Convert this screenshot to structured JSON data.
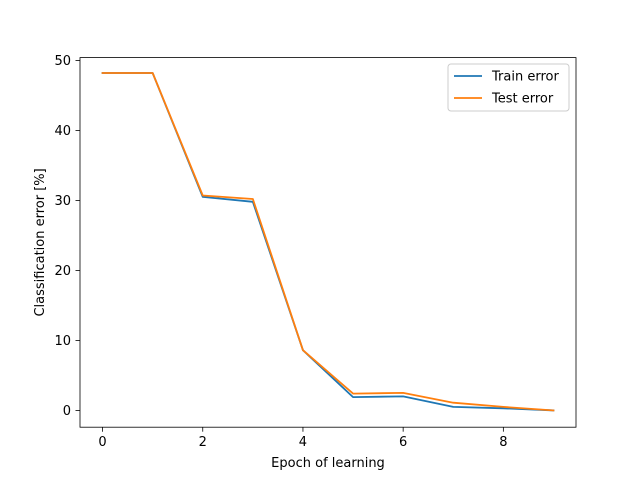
{
  "chart_data": {
    "type": "line",
    "title": "",
    "xlabel": "Epoch of learning",
    "ylabel": "Classification error [%]",
    "xlim": [
      -0.45,
      9.45
    ],
    "ylim": [
      -2.4,
      50.4
    ],
    "x_ticks": [
      0,
      2,
      4,
      6,
      8
    ],
    "y_ticks": [
      0,
      10,
      20,
      30,
      40,
      50
    ],
    "grid": false,
    "legend_position": "top-right",
    "x": [
      0,
      1,
      2,
      3,
      4,
      5,
      6,
      7,
      8,
      9
    ],
    "series": [
      {
        "name": "Train error",
        "color": "#1f77b4",
        "values": [
          48.2,
          48.2,
          30.5,
          29.8,
          8.6,
          1.9,
          2.0,
          0.5,
          0.3,
          0.0
        ]
      },
      {
        "name": "Test error",
        "color": "#ff7f0e",
        "values": [
          48.2,
          48.2,
          30.7,
          30.2,
          8.6,
          2.4,
          2.5,
          1.1,
          0.5,
          0.0
        ]
      }
    ]
  }
}
